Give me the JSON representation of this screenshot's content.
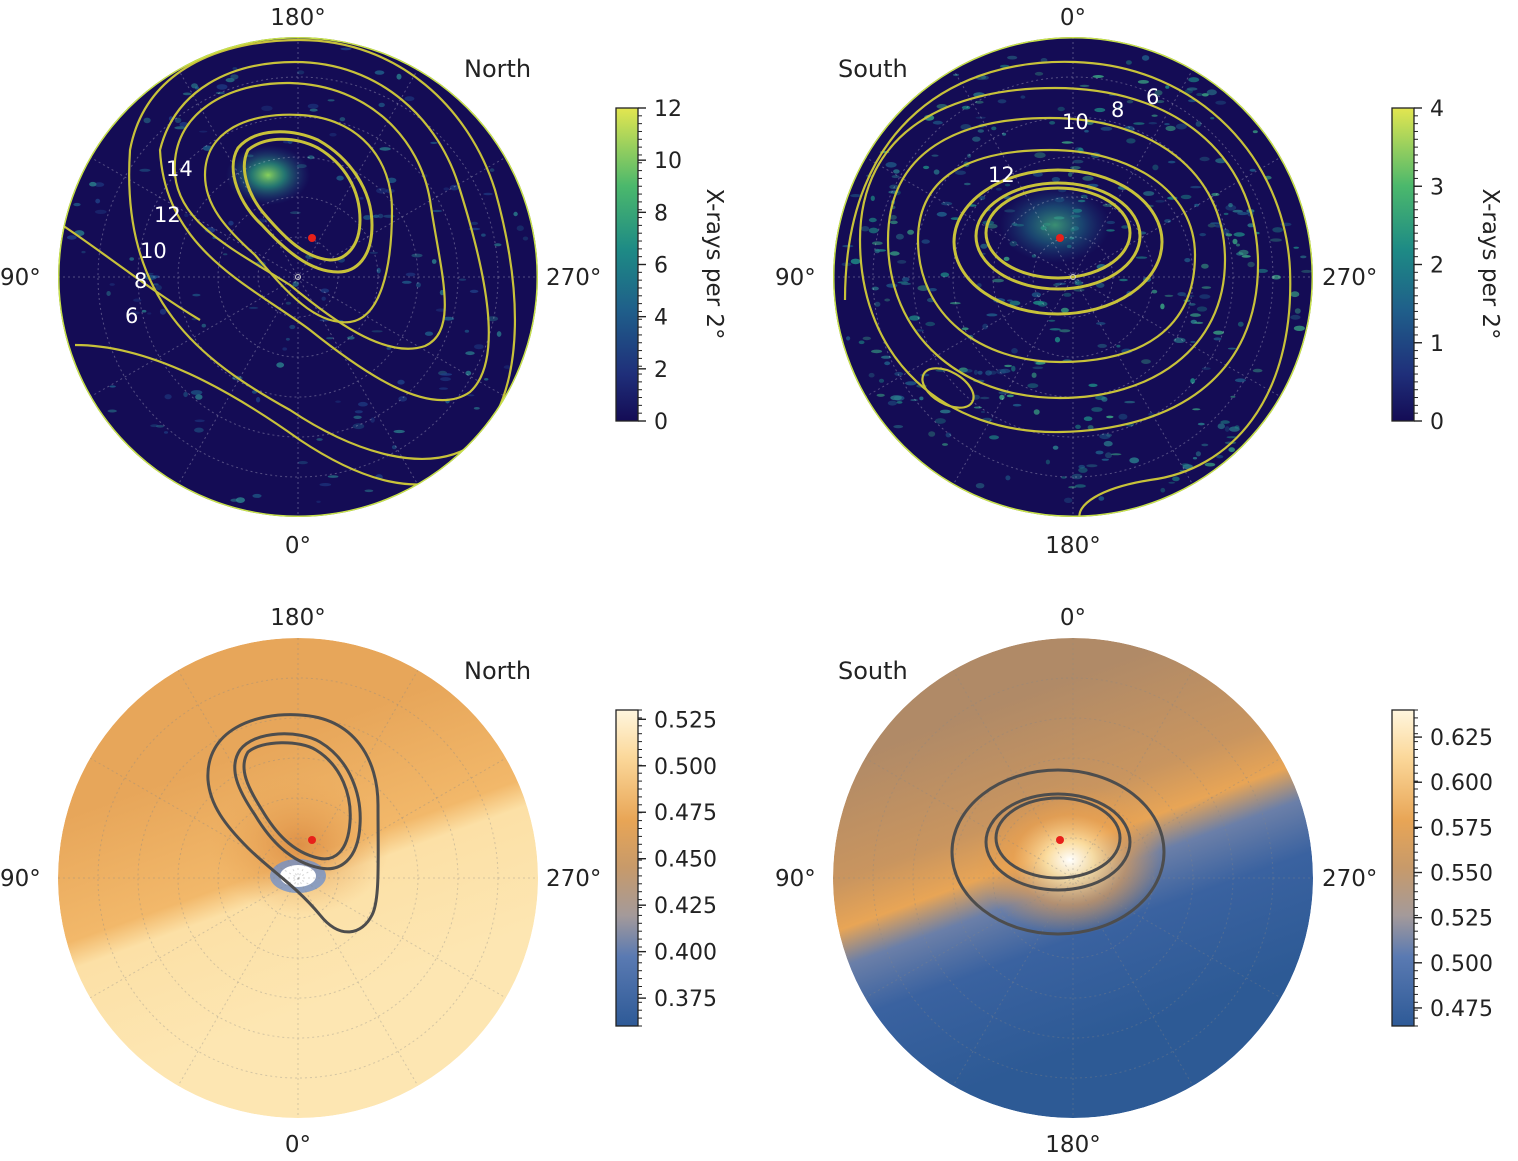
{
  "chart_data": [
    {
      "type": "heatmap",
      "projection": "polar",
      "hemisphere": "North",
      "angle_labels": {
        "top": "180°",
        "bottom": "0°",
        "left": "90°",
        "right": "270°"
      },
      "colorbar": {
        "label": "X-rays per 2°",
        "range": [
          0,
          12
        ],
        "ticks": [
          "0",
          "2",
          "4",
          "6",
          "8",
          "10",
          "12"
        ],
        "colormap": "viridis-like"
      },
      "contour_labels": [
        "14",
        "12",
        "10",
        "8",
        "6"
      ],
      "red_marker": true,
      "grid": true
    },
    {
      "type": "heatmap",
      "projection": "polar",
      "hemisphere": "South",
      "angle_labels": {
        "top": "0°",
        "bottom": "180°",
        "left": "90°",
        "right": "270°"
      },
      "colorbar": {
        "label": "X-rays per 2°",
        "range": [
          0,
          4
        ],
        "ticks": [
          "0",
          "1",
          "2",
          "3",
          "4"
        ],
        "colormap": "viridis-like"
      },
      "contour_labels": [
        "12",
        "10",
        "8",
        "6"
      ],
      "red_marker": true,
      "grid": true
    },
    {
      "type": "heatmap",
      "projection": "polar",
      "hemisphere": "North",
      "angle_labels": {
        "top": "180°",
        "bottom": "0°",
        "left": "90°",
        "right": "270°"
      },
      "colorbar": {
        "label": "",
        "range": [
          0.36,
          0.53
        ],
        "ticks": [
          "0.375",
          "0.400",
          "0.425",
          "0.450",
          "0.475",
          "0.500",
          "0.525"
        ],
        "colormap": "blue-brown-cream"
      },
      "red_marker": true,
      "grid": true
    },
    {
      "type": "heatmap",
      "projection": "polar",
      "hemisphere": "South",
      "angle_labels": {
        "top": "0°",
        "bottom": "180°",
        "left": "90°",
        "right": "270°"
      },
      "colorbar": {
        "label": "",
        "range": [
          0.465,
          0.64
        ],
        "ticks": [
          "0.475",
          "0.500",
          "0.525",
          "0.550",
          "0.575",
          "0.600",
          "0.625"
        ],
        "colormap": "blue-brown-cream"
      },
      "red_marker": true,
      "grid": true
    }
  ],
  "colors": {
    "viridis_low": "#140c55",
    "viridis_high": "#e3e650",
    "contour_yellow": "#c8c23a",
    "contour_dark": "#4d4d4d",
    "red_marker": "#e8201a",
    "orange": "#e8a556",
    "cream": "#fde3a8",
    "brown": "#b28c67",
    "blue": "#2e5a97"
  }
}
